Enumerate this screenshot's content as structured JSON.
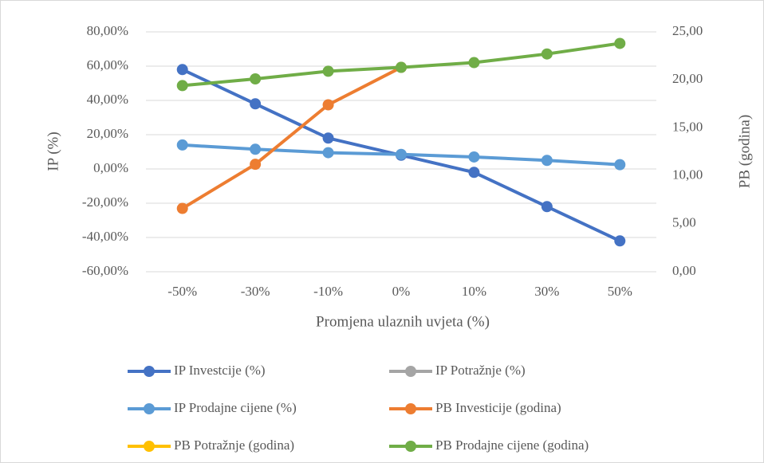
{
  "chart_data": {
    "type": "line",
    "categories": [
      "-50%",
      "-30%",
      "-10%",
      "0%",
      "10%",
      "30%",
      "50%"
    ],
    "x_label": "Promjena ulaznih uvjeta (%)",
    "y_label": "IP (%)",
    "y2_label": "PB (godina)",
    "ylim": [
      -60,
      80
    ],
    "yticks": [
      {
        "value": -60,
        "label": "-60,00%"
      },
      {
        "value": -40,
        "label": "-40,00%"
      },
      {
        "value": -20,
        "label": "-20,00%"
      },
      {
        "value": 0,
        "label": "0,00%"
      },
      {
        "value": 20,
        "label": "20,00%"
      },
      {
        "value": 40,
        "label": "40,00%"
      },
      {
        "value": 60,
        "label": "60,00%"
      },
      {
        "value": 80,
        "label": "80,00%"
      }
    ],
    "y2lim": [
      0,
      25
    ],
    "y2ticks": [
      {
        "value": 0,
        "label": "0,00"
      },
      {
        "value": 5,
        "label": "5,00"
      },
      {
        "value": 10,
        "label": "10,00"
      },
      {
        "value": 15,
        "label": "15,00"
      },
      {
        "value": 20,
        "label": "20,00"
      },
      {
        "value": 25,
        "label": "25,00"
      }
    ],
    "grid": true,
    "legend": "bottom",
    "series": [
      {
        "name": "IP Investcije (%)",
        "color": "#4472c4",
        "values": [
          58,
          38,
          18,
          8,
          -2,
          -22,
          -42
        ]
      },
      {
        "name": "IP Potražnje (%)",
        "color": "#a5a5a5",
        "values": [
          null,
          null,
          null,
          null,
          null,
          null,
          null
        ]
      },
      {
        "name": "IP Prodajne cijene (%)",
        "color": "#5b9bd5",
        "values": [
          14,
          11.5,
          9.5,
          8.5,
          7,
          5,
          2.5
        ]
      },
      {
        "name": "PB Investicije (godina)",
        "color": "#ed7d31",
        "axis": "y2",
        "values": [
          6.6,
          11.2,
          17.4,
          21.3,
          null,
          null,
          null
        ]
      },
      {
        "name": "PB Potražnje (godina)",
        "color": "#ffc000",
        "axis": "y2",
        "values": [
          null,
          null,
          null,
          null,
          null,
          null,
          null
        ]
      },
      {
        "name": "PB Prodajne cijene (godina)",
        "color": "#70ad47",
        "axis": "y2",
        "values": [
          19.4,
          20.1,
          20.9,
          21.3,
          21.8,
          22.7,
          23.8
        ]
      }
    ]
  }
}
